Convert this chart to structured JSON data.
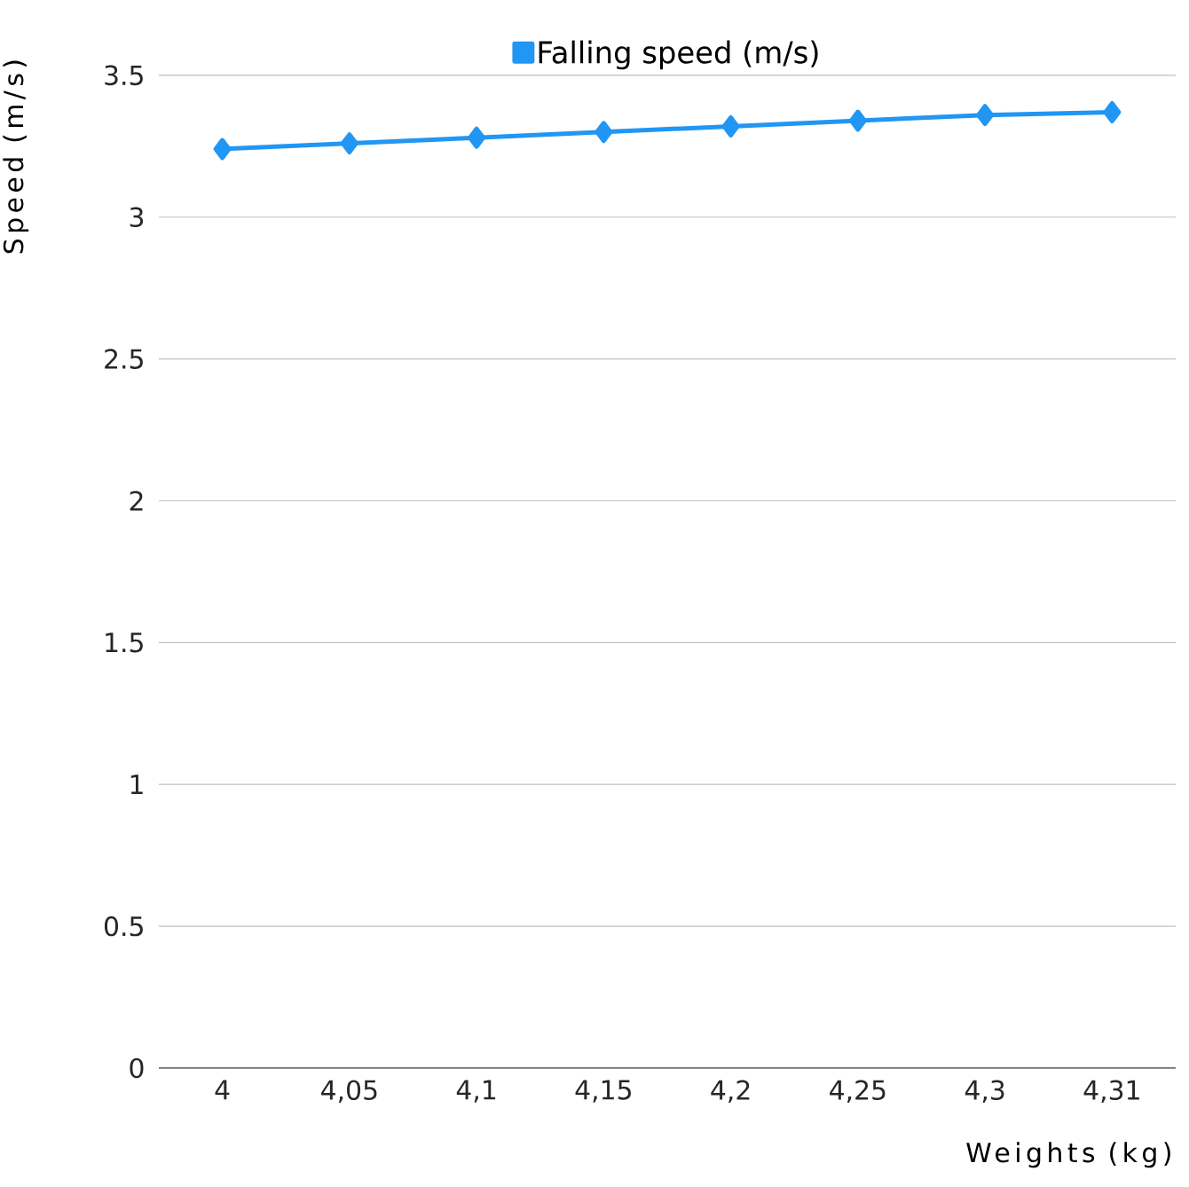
{
  "chart_data": {
    "type": "line",
    "xlabel": "Weights (kg)",
    "ylabel": "Speed (m/s)",
    "categories": [
      "4",
      "4,05",
      "4,1",
      "4,15",
      "4,2",
      "4,25",
      "4,3",
      "4,31"
    ],
    "series": [
      {
        "name": "Falling speed (m/s)",
        "color": "#2196f3",
        "values": [
          3.24,
          3.26,
          3.28,
          3.3,
          3.32,
          3.34,
          3.36,
          3.37
        ]
      }
    ],
    "ylim": [
      0,
      3.5
    ],
    "yticks": [
      0,
      0.5,
      1,
      1.5,
      2,
      2.5,
      3,
      3.5
    ],
    "grid": "y",
    "legend": "top",
    "marker": "diamond"
  }
}
